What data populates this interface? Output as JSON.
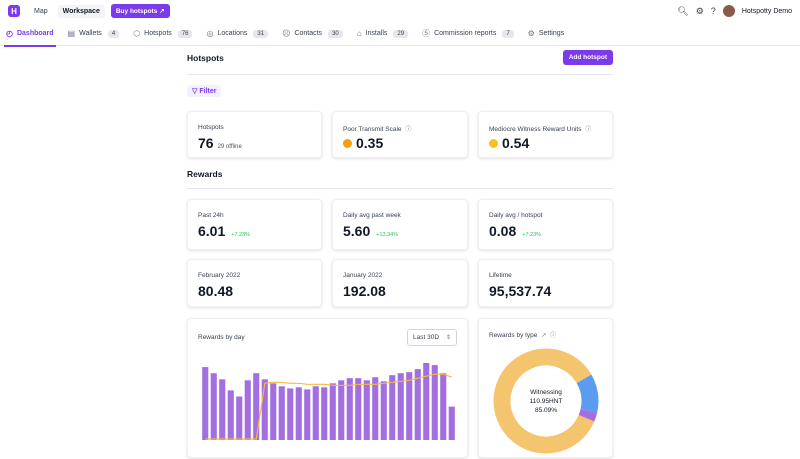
{
  "topbar": {
    "logo": "H",
    "map": "Map",
    "workspace": "Workspace",
    "buy": "Buy hotspots ↗",
    "user": "Hotspotty Demo",
    "icons": [
      "search-icon",
      "gear-icon",
      "help-icon"
    ]
  },
  "nav": {
    "tabs": [
      {
        "label": "Dashboard",
        "icon": "◴",
        "count": ""
      },
      {
        "label": "Wallets",
        "icon": "▤",
        "count": "4"
      },
      {
        "label": "Hotspots",
        "icon": "⬡",
        "count": "76"
      },
      {
        "label": "Locations",
        "icon": "◎",
        "count": "31"
      },
      {
        "label": "Contacts",
        "icon": "☹",
        "count": "30"
      },
      {
        "label": "Installs",
        "icon": "⌂",
        "count": "29"
      },
      {
        "label": "Commission reports",
        "icon": "Ⓢ",
        "count": "7"
      },
      {
        "label": "Settings",
        "icon": "⚙",
        "count": ""
      }
    ]
  },
  "hotspots": {
    "title": "Hotspots",
    "add_button": "Add hotspot",
    "filter": "Filter",
    "count_label": "Hotspots",
    "count_value": "76",
    "offline": "29 offline",
    "transmit_label": "Poor Transmit Scale",
    "transmit_value": "0.35",
    "witness_label": "Mediocre Witness Reward Units",
    "witness_value": "0.54",
    "transmit_color": "#f59e0b",
    "witness_color": "#fbbf24"
  },
  "rewards": {
    "title": "Rewards",
    "past24_label": "Past 24h",
    "past24_value": "6.01",
    "past24_pct": "+7.23%",
    "week_label": "Daily avg past week",
    "week_value": "5.60",
    "week_pct": "+13.34%",
    "perhs_label": "Daily avg / hotspot",
    "perhs_value": "0.08",
    "perhs_pct": "+7.23%",
    "feb_label": "February 2022",
    "feb_value": "80.48",
    "jan_label": "January 2022",
    "jan_value": "192.08",
    "life_label": "Lifetime",
    "life_value": "95,537.74"
  },
  "by_day": {
    "title": "Rewards by day",
    "range": "Last 30D",
    "bar_color": "#a36ee0",
    "line_color": "#f5b942"
  },
  "by_type": {
    "title": "Rewards by type",
    "center_label": "Witnessing",
    "center_value": "110.95HNT",
    "center_pct": "85.09%"
  },
  "chart_data": [
    {
      "type": "bar",
      "title": "Rewards by day",
      "values": [
        7.2,
        6.6,
        6.0,
        4.9,
        4.3,
        5.9,
        6.6,
        6.0,
        5.6,
        5.3,
        5.1,
        5.2,
        5.0,
        5.3,
        5.2,
        5.6,
        5.9,
        6.1,
        6.1,
        5.9,
        6.2,
        5.8,
        6.4,
        6.6,
        6.7,
        7.0,
        7.6,
        7.4,
        6.6,
        3.3
      ],
      "series": [
        {
          "name": "daily",
          "values": [
            7.2,
            6.6,
            6.0,
            4.9,
            4.3,
            5.9,
            6.6,
            6.0,
            5.6,
            5.3,
            5.1,
            5.2,
            5.0,
            5.3,
            5.2,
            5.6,
            5.9,
            6.1,
            6.1,
            5.9,
            6.2,
            5.8,
            6.4,
            6.6,
            6.7,
            7.0,
            7.6,
            7.4,
            6.6,
            3.3
          ]
        },
        {
          "name": "average",
          "values": [
            0.1,
            0.1,
            0.1,
            0.1,
            0.1,
            0.1,
            0.1,
            5.6,
            5.7,
            5.7,
            5.6,
            5.6,
            5.5,
            5.5,
            5.5,
            5.4,
            5.4,
            5.4,
            5.5,
            5.5,
            5.5,
            5.6,
            5.7,
            5.8,
            5.9,
            6.1,
            6.3,
            6.5,
            6.5,
            6.2
          ]
        }
      ],
      "ylim": [
        0,
        8
      ]
    },
    {
      "type": "pie",
      "title": "Rewards by type",
      "categories": [
        "Witnessing",
        "Other (blue)",
        "Other (purple)"
      ],
      "values": [
        85.09,
        12.0,
        2.91
      ],
      "colors": [
        "#f5c46e",
        "#5b9cf0",
        "#a36ee0"
      ]
    }
  ]
}
